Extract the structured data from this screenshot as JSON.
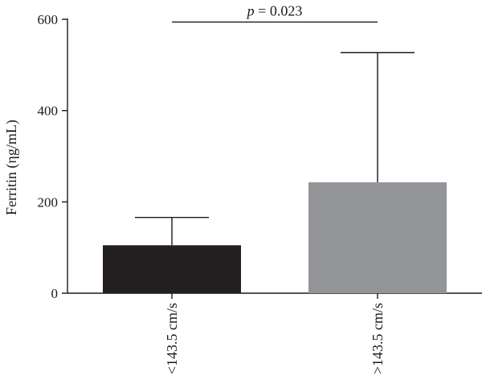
{
  "chart_data": {
    "type": "bar",
    "categories": [
      "<143.5 cm/s",
      ">143.5 cm/s"
    ],
    "values": [
      105,
      243
    ],
    "error_upper": [
      166,
      527
    ],
    "ylabel": "Ferritin (ηg/mL)",
    "ylim": [
      0,
      600
    ],
    "yticks": [
      0,
      200,
      400,
      600
    ],
    "bar_colors": [
      "#231f20",
      "#939598"
    ],
    "annotation": {
      "text": "p = 0.023",
      "p_symbol": "p",
      "p_rest": " = 0.023",
      "level": 594
    },
    "grid": false,
    "legend": "none"
  }
}
